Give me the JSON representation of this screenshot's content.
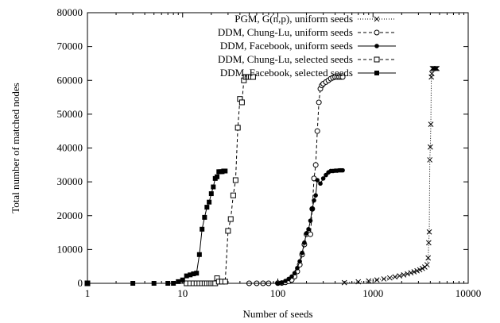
{
  "chart_data": {
    "type": "line",
    "xlabel": "Number of seeds",
    "ylabel": "Total number of matched nodes",
    "x_scale": "log",
    "xlim": [
      1,
      10000
    ],
    "ylim": [
      0,
      80000
    ],
    "x_ticks": [
      1,
      10,
      100,
      1000,
      10000
    ],
    "x_tick_labels": [
      "1",
      "10",
      "100",
      "1000",
      "10000"
    ],
    "y_ticks": [
      0,
      10000,
      20000,
      30000,
      40000,
      50000,
      60000,
      70000,
      80000
    ],
    "y_tick_labels": [
      "0",
      "10000",
      "20000",
      "30000",
      "40000",
      "50000",
      "60000",
      "70000",
      "80000"
    ],
    "grid": false,
    "legend_position": "top-right",
    "series": [
      {
        "name": "PGM, G(n,p), uniform seeds",
        "line": "dotted",
        "marker": "x",
        "points": [
          [
            500,
            200
          ],
          [
            700,
            450
          ],
          [
            900,
            700
          ],
          [
            1100,
            1000
          ],
          [
            1300,
            1300
          ],
          [
            1500,
            1600
          ],
          [
            1700,
            1900
          ],
          [
            1900,
            2200
          ],
          [
            2100,
            2500
          ],
          [
            2300,
            2800
          ],
          [
            2500,
            3100
          ],
          [
            2700,
            3400
          ],
          [
            2900,
            3700
          ],
          [
            3100,
            4000
          ],
          [
            3300,
            4400
          ],
          [
            3500,
            4800
          ],
          [
            3700,
            5500
          ],
          [
            3800,
            7500
          ],
          [
            3850,
            12000
          ],
          [
            3900,
            15200
          ],
          [
            3950,
            36500
          ],
          [
            4000,
            40300
          ],
          [
            4050,
            47000
          ],
          [
            4100,
            61000
          ],
          [
            4150,
            62000
          ],
          [
            4200,
            63500
          ],
          [
            4300,
            63500
          ],
          [
            4400,
            63500
          ],
          [
            4500,
            63500
          ],
          [
            4600,
            63500
          ],
          [
            4700,
            63500
          ]
        ]
      },
      {
        "name": "DDM, Chung-Lu, uniform seeds",
        "line": "dashed",
        "marker": "open-circle",
        "points": [
          [
            1,
            0
          ],
          [
            50,
            0
          ],
          [
            60,
            0
          ],
          [
            70,
            0
          ],
          [
            80,
            0
          ],
          [
            100,
            50
          ],
          [
            110,
            100
          ],
          [
            120,
            300
          ],
          [
            130,
            600
          ],
          [
            140,
            1000
          ],
          [
            150,
            2000
          ],
          [
            160,
            3500
          ],
          [
            170,
            5500
          ],
          [
            180,
            8500
          ],
          [
            190,
            11500
          ],
          [
            200,
            14500
          ],
          [
            210,
            15000
          ],
          [
            220,
            14500
          ],
          [
            230,
            22000
          ],
          [
            240,
            31000
          ],
          [
            250,
            35000
          ],
          [
            260,
            45000
          ],
          [
            270,
            53500
          ],
          [
            280,
            57500
          ],
          [
            290,
            58500
          ],
          [
            300,
            59000
          ],
          [
            320,
            59500
          ],
          [
            340,
            60000
          ],
          [
            360,
            60500
          ],
          [
            380,
            60800
          ],
          [
            400,
            61000
          ],
          [
            420,
            61000
          ],
          [
            440,
            61000
          ],
          [
            460,
            61000
          ],
          [
            480,
            61000
          ]
        ]
      },
      {
        "name": "DDM, Facebook, uniform seeds",
        "line": "solid",
        "marker": "filled-circle",
        "points": [
          [
            1,
            0
          ],
          [
            100,
            0
          ],
          [
            110,
            200
          ],
          [
            120,
            700
          ],
          [
            130,
            1300
          ],
          [
            140,
            2000
          ],
          [
            150,
            3000
          ],
          [
            160,
            4500
          ],
          [
            170,
            6500
          ],
          [
            180,
            9000
          ],
          [
            190,
            12000
          ],
          [
            200,
            14800
          ],
          [
            210,
            16000
          ],
          [
            220,
            18500
          ],
          [
            230,
            22000
          ],
          [
            240,
            24500
          ],
          [
            250,
            26000
          ],
          [
            260,
            30500
          ],
          [
            280,
            29500
          ],
          [
            300,
            31000
          ],
          [
            320,
            32000
          ],
          [
            340,
            32800
          ],
          [
            360,
            33200
          ],
          [
            380,
            33200
          ],
          [
            400,
            33300
          ],
          [
            420,
            33300
          ],
          [
            440,
            33400
          ],
          [
            460,
            33400
          ],
          [
            480,
            33400
          ]
        ]
      },
      {
        "name": "DDM, Chung-Lu, selected seeds",
        "line": "dashed",
        "marker": "open-square",
        "points": [
          [
            1,
            0
          ],
          [
            11,
            0
          ],
          [
            12,
            0
          ],
          [
            13,
            0
          ],
          [
            14,
            0
          ],
          [
            15,
            0
          ],
          [
            16,
            0
          ],
          [
            17,
            0
          ],
          [
            18,
            0
          ],
          [
            19,
            0
          ],
          [
            20,
            0
          ],
          [
            21,
            0
          ],
          [
            22,
            0
          ],
          [
            23,
            1500
          ],
          [
            24,
            500
          ],
          [
            26,
            500
          ],
          [
            28,
            500
          ],
          [
            30,
            15500
          ],
          [
            32,
            19000
          ],
          [
            34,
            26000
          ],
          [
            36,
            30500
          ],
          [
            38,
            46000
          ],
          [
            40,
            54500
          ],
          [
            42,
            53500
          ],
          [
            44,
            60000
          ],
          [
            46,
            61000
          ],
          [
            48,
            61000
          ],
          [
            50,
            61000
          ],
          [
            52,
            61000
          ],
          [
            55,
            61000
          ]
        ]
      },
      {
        "name": "DDM, Facebook, selected seeds",
        "line": "solid",
        "marker": "filled-square",
        "points": [
          [
            1,
            0
          ],
          [
            3,
            0
          ],
          [
            5,
            0
          ],
          [
            7,
            0
          ],
          [
            8,
            0
          ],
          [
            9,
            500
          ],
          [
            10,
            1000
          ],
          [
            11,
            2200
          ],
          [
            12,
            2500
          ],
          [
            13,
            2800
          ],
          [
            14,
            3000
          ],
          [
            15,
            8500
          ],
          [
            16,
            16000
          ],
          [
            17,
            19500
          ],
          [
            18,
            22500
          ],
          [
            19,
            24000
          ],
          [
            20,
            26500
          ],
          [
            21,
            28500
          ],
          [
            22,
            31000
          ],
          [
            23,
            31500
          ],
          [
            24,
            33000
          ],
          [
            25,
            33000
          ],
          [
            26,
            33000
          ],
          [
            27,
            33200
          ],
          [
            28,
            33200
          ]
        ]
      }
    ]
  }
}
